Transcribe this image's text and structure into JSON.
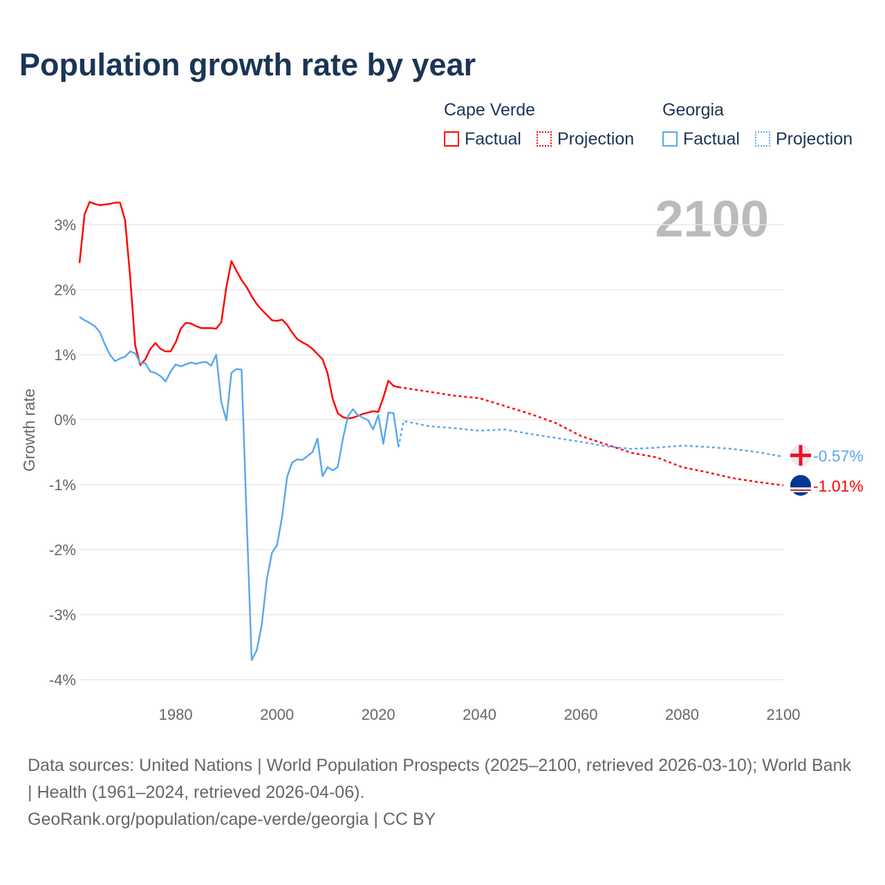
{
  "chart_data": {
    "type": "line",
    "title": "Population growth rate by year",
    "ylabel": "Growth rate",
    "xlabel": "",
    "xlim": [
      1961,
      2100
    ],
    "ylim": [
      -4.2,
      3.6
    ],
    "x_ticks": [
      "1980",
      "2000",
      "2020",
      "2040",
      "2060",
      "2080",
      "2100"
    ],
    "x_tick_values": [
      1980,
      2000,
      2020,
      2040,
      2060,
      2080,
      2100
    ],
    "y_ticks": [
      "3%",
      "2%",
      "1%",
      "0%",
      "-1%",
      "-2%",
      "-3%",
      "-4%"
    ],
    "y_tick_values": [
      3,
      2,
      1,
      0,
      -1,
      -2,
      -3,
      -4
    ],
    "year_label": "2100",
    "legend": {
      "groups": [
        {
          "name": "Cape Verde",
          "factual": "Factual",
          "projection": "Projection"
        },
        {
          "name": "Georgia",
          "factual": "Factual",
          "projection": "Projection"
        }
      ]
    },
    "series": [
      {
        "name": "Cape Verde",
        "color": "#ff0000",
        "end_label": "-1.01%",
        "factual": {
          "start": 1961,
          "values": [
            2.41,
            3.16,
            3.35,
            3.32,
            3.3,
            3.31,
            3.32,
            3.34,
            3.34,
            3.07,
            2.2,
            1.14,
            0.84,
            0.93,
            1.09,
            1.18,
            1.09,
            1.05,
            1.05,
            1.19,
            1.4,
            1.49,
            1.48,
            1.44,
            1.41,
            1.41,
            1.41,
            1.4,
            1.5,
            2.04,
            2.44,
            2.29,
            2.15,
            2.04,
            1.9,
            1.78,
            1.69,
            1.61,
            1.53,
            1.52,
            1.54,
            1.46,
            1.34,
            1.24,
            1.19,
            1.15,
            1.09,
            1.01,
            0.93,
            0.71,
            0.32,
            0.1,
            0.04,
            0.02,
            0.03,
            0.06,
            0.09,
            0.11,
            0.13,
            0.12,
            0.34,
            0.6,
            0.52,
            0.5
          ]
        },
        "projection": {
          "x": [
            2024,
            2025,
            2030,
            2035,
            2040,
            2045,
            2050,
            2055,
            2060,
            2065,
            2070,
            2075,
            2080,
            2085,
            2090,
            2095,
            2100
          ],
          "values": [
            0.5,
            0.49,
            0.43,
            0.37,
            0.33,
            0.21,
            0.09,
            -0.05,
            -0.25,
            -0.38,
            -0.51,
            -0.58,
            -0.73,
            -0.81,
            -0.9,
            -0.96,
            -1.01
          ]
        }
      },
      {
        "name": "Georgia",
        "color": "#5ca7ee",
        "end_label": "-0.57%",
        "factual": {
          "start": 1961,
          "values": [
            1.58,
            1.53,
            1.49,
            1.44,
            1.35,
            1.16,
            1.0,
            0.9,
            0.94,
            0.97,
            1.05,
            1.02,
            0.87,
            0.87,
            0.74,
            0.72,
            0.67,
            0.59,
            0.74,
            0.85,
            0.82,
            0.85,
            0.88,
            0.86,
            0.88,
            0.89,
            0.83,
            1.0,
            0.27,
            -0.01,
            0.72,
            0.78,
            0.77,
            -1.5,
            -3.7,
            -3.55,
            -3.15,
            -2.45,
            -2.05,
            -1.93,
            -1.5,
            -0.88,
            -0.66,
            -0.61,
            -0.62,
            -0.56,
            -0.5,
            -0.29,
            -0.87,
            -0.73,
            -0.78,
            -0.73,
            -0.3,
            0.05,
            0.16,
            0.07,
            0.03,
            -0.01,
            -0.15,
            0.07,
            -0.37,
            0.11,
            0.1,
            -0.42
          ]
        },
        "projection": {
          "x": [
            2024,
            2025,
            2030,
            2035,
            2040,
            2045,
            2050,
            2055,
            2060,
            2065,
            2070,
            2075,
            2080,
            2085,
            2090,
            2095,
            2100
          ],
          "values": [
            -0.42,
            -0.02,
            -0.1,
            -0.13,
            -0.17,
            -0.15,
            -0.22,
            -0.28,
            -0.34,
            -0.41,
            -0.45,
            -0.43,
            -0.4,
            -0.42,
            -0.45,
            -0.5,
            -0.57
          ]
        }
      }
    ]
  },
  "source": {
    "line1": "Data sources: United Nations | World Population Prospects (2025–2100, retrieved 2026-03-10); World Bank | Health (1961–2024, retrieved 2026-04-06).",
    "line2": "GeoRank.org/population/cape-verde/georgia | CC BY"
  }
}
